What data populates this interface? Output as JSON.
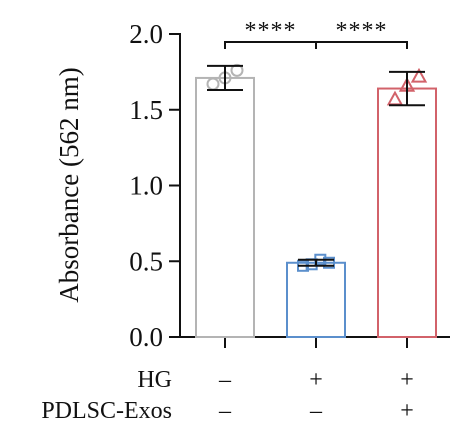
{
  "chart_data": {
    "type": "bar",
    "ylabel": "Absorbance (562 nm)",
    "ylim": [
      0,
      2.0
    ],
    "yticks": [
      0.0,
      0.5,
      1.0,
      1.5,
      2.0
    ],
    "ytick_labels": [
      "0.0",
      "0.5",
      "1.0",
      "1.5",
      "2.0"
    ],
    "grid": false,
    "legend": "none",
    "groups": [
      {
        "values_mean": 1.71,
        "error": 0.08,
        "points": [
          1.67,
          1.71,
          1.76
        ],
        "marker": "circle",
        "color": "#b4b4b4"
      },
      {
        "values_mean": 0.49,
        "error": 0.02,
        "points": [
          0.47,
          0.48,
          0.51,
          0.49
        ],
        "marker": "square",
        "color": "#5b8fcc"
      },
      {
        "values_mean": 1.64,
        "error": 0.11,
        "points": [
          1.57,
          1.66,
          1.72
        ],
        "marker": "triangle",
        "color": "#d2626a"
      }
    ],
    "condition_rows": [
      {
        "label": "HG",
        "values": [
          "–",
          "+",
          "+"
        ]
      },
      {
        "label": "PDLSC-Exos",
        "values": [
          "–",
          "–",
          "+"
        ]
      }
    ],
    "significance": [
      {
        "from": 0,
        "to": 1,
        "label": "****"
      },
      {
        "from": 1,
        "to": 2,
        "label": "****"
      }
    ]
  }
}
